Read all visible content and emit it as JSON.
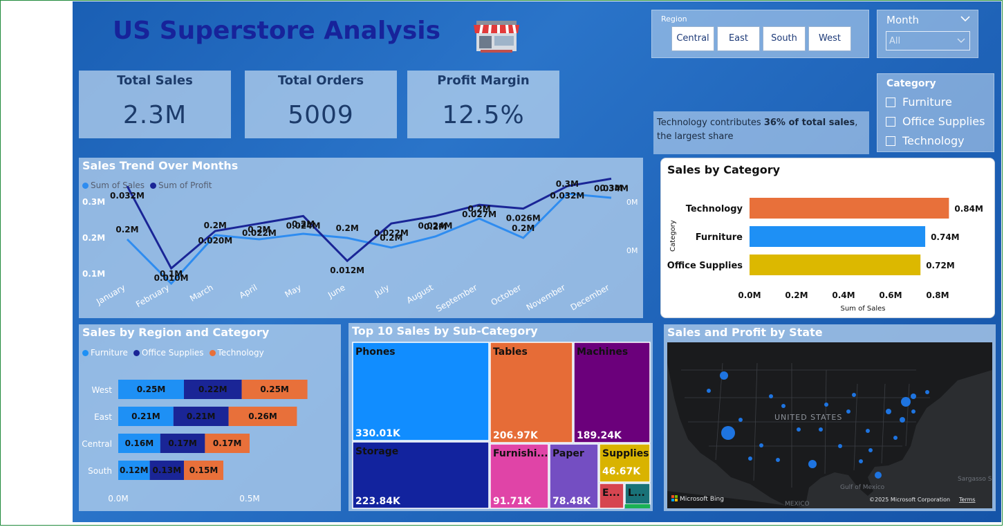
{
  "header": {
    "title": "US Superstore Analysis",
    "store_icon": "storefront-icon"
  },
  "kpis": [
    {
      "title": "Total Sales",
      "value": "2.3M"
    },
    {
      "title": "Total Orders",
      "value": "5009"
    },
    {
      "title": "Profit Margin",
      "value": "12.5%"
    }
  ],
  "region_filter": {
    "label": "Region",
    "options": [
      "Central",
      "East",
      "South",
      "West"
    ]
  },
  "month_filter": {
    "label": "Month",
    "value": "All"
  },
  "category_filter": {
    "label": "Category",
    "options": [
      "Furniture",
      "Office Supplies",
      "Technology"
    ]
  },
  "insight": {
    "prefix": "Technology contributes ",
    "bold": "36% of total sales",
    "suffix": ", the largest share"
  },
  "charts": {
    "sales_trend": {
      "title": "Sales Trend Over Months",
      "legend": [
        "Sum of Sales",
        "Sum of Profit"
      ],
      "colors": {
        "sales": "#2e8cf0",
        "profit": "#1a2596"
      },
      "months": [
        "January",
        "February",
        "March",
        "April",
        "May",
        "June",
        "July",
        "August",
        "September",
        "October",
        "November",
        "December"
      ],
      "sales": [
        0.2,
        0.1,
        0.2,
        0.2,
        0.2,
        0.2,
        0.2,
        0.2,
        0.2,
        0.2,
        0.3,
        0.3
      ],
      "profit": [
        0.032,
        0.01,
        0.02,
        0.022,
        0.024,
        0.012,
        0.022,
        0.024,
        0.027,
        0.026,
        0.032,
        0.034
      ],
      "sales_labels": [
        "0.2M",
        "0.1M",
        "0.2M",
        "0.2M",
        "0.2M",
        "0.2M",
        "0.2M",
        "0.2M",
        "0.2M",
        "0.2M",
        "0.3M",
        "0.3M"
      ],
      "profit_labels": [
        "0.032M",
        "0.010M",
        "0.020M",
        "0.022M",
        "0.024M",
        "0.012M",
        "0.022M",
        "0.024M",
        "0.027M",
        "0.026M",
        "0.032M",
        "0.034M"
      ],
      "y_ticks": [
        "0.3M",
        "0.2M",
        "0.1M"
      ],
      "y2_ticks": [
        "0M",
        "0M"
      ]
    },
    "sales_by_category": {
      "title": "Sales by Category",
      "type": "bar",
      "categories": [
        "Technology",
        "Furniture",
        "Office Supplies"
      ],
      "values": [
        0.84,
        0.74,
        0.72
      ],
      "value_labels": [
        "0.84M",
        "0.74M",
        "0.72M"
      ],
      "colors": [
        "#e8703a",
        "#1e90f5",
        "#dcb800"
      ],
      "xlabel": "Sum of Sales",
      "ylabel": "Category",
      "x_ticks": [
        "0.0M",
        "0.2M",
        "0.4M",
        "0.6M",
        "0.8M"
      ],
      "xlim": [
        0,
        0.9
      ]
    },
    "sales_by_region_category": {
      "title": "Sales by Region and Category",
      "type": "bar",
      "legend": [
        "Furniture",
        "Office Supplies",
        "Technology"
      ],
      "colors": [
        "#1e90f5",
        "#1a2596",
        "#e8703a"
      ],
      "regions": [
        "West",
        "East",
        "Central",
        "South"
      ],
      "series": [
        {
          "name": "Furniture",
          "values": [
            0.25,
            0.21,
            0.16,
            0.12
          ],
          "labels": [
            "0.25M",
            "0.21M",
            "0.16M",
            "0.12M"
          ]
        },
        {
          "name": "Office Supplies",
          "values": [
            0.22,
            0.21,
            0.17,
            0.13
          ],
          "labels": [
            "0.22M",
            "0.21M",
            "0.17M",
            "0.13M"
          ]
        },
        {
          "name": "Technology",
          "values": [
            0.25,
            0.26,
            0.17,
            0.15
          ],
          "labels": [
            "0.25M",
            "0.26M",
            "0.17M",
            "0.15M"
          ]
        }
      ],
      "x_ticks": [
        "0.0M",
        "0.5M"
      ]
    },
    "top10_subcategory": {
      "title": "Top 10 Sales by Sub-Category",
      "type": "treemap",
      "items": [
        {
          "name": "Phones",
          "value": "330.01K",
          "color": "#118dff"
        },
        {
          "name": "Storage",
          "value": "223.84K",
          "color": "#12239e"
        },
        {
          "name": "Tables",
          "value": "206.97K",
          "color": "#e66c37"
        },
        {
          "name": "Machines",
          "value": "189.24K",
          "color": "#6b007b"
        },
        {
          "name": "Furnishi...",
          "value": "91.71K",
          "color": "#e044a7"
        },
        {
          "name": "Paper",
          "value": "78.48K",
          "color": "#744ec2"
        },
        {
          "name": "Supplies",
          "value": "46.67K",
          "color": "#d9b300"
        },
        {
          "name": "E...",
          "value": "",
          "color": "#d64550"
        },
        {
          "name": "L...",
          "value": "",
          "color": "#197278"
        }
      ]
    },
    "state_map": {
      "title": "Sales and Profit by State",
      "labels": {
        "country": "UNITED STATES",
        "mexico": "MEXICO",
        "gulf": "Gulf of Mexico",
        "sargasso": "Sargasso Se",
        "bing": "Microsoft Bing",
        "copyright": "©2025 Microsoft Corporation",
        "terms": "Terms"
      }
    }
  }
}
